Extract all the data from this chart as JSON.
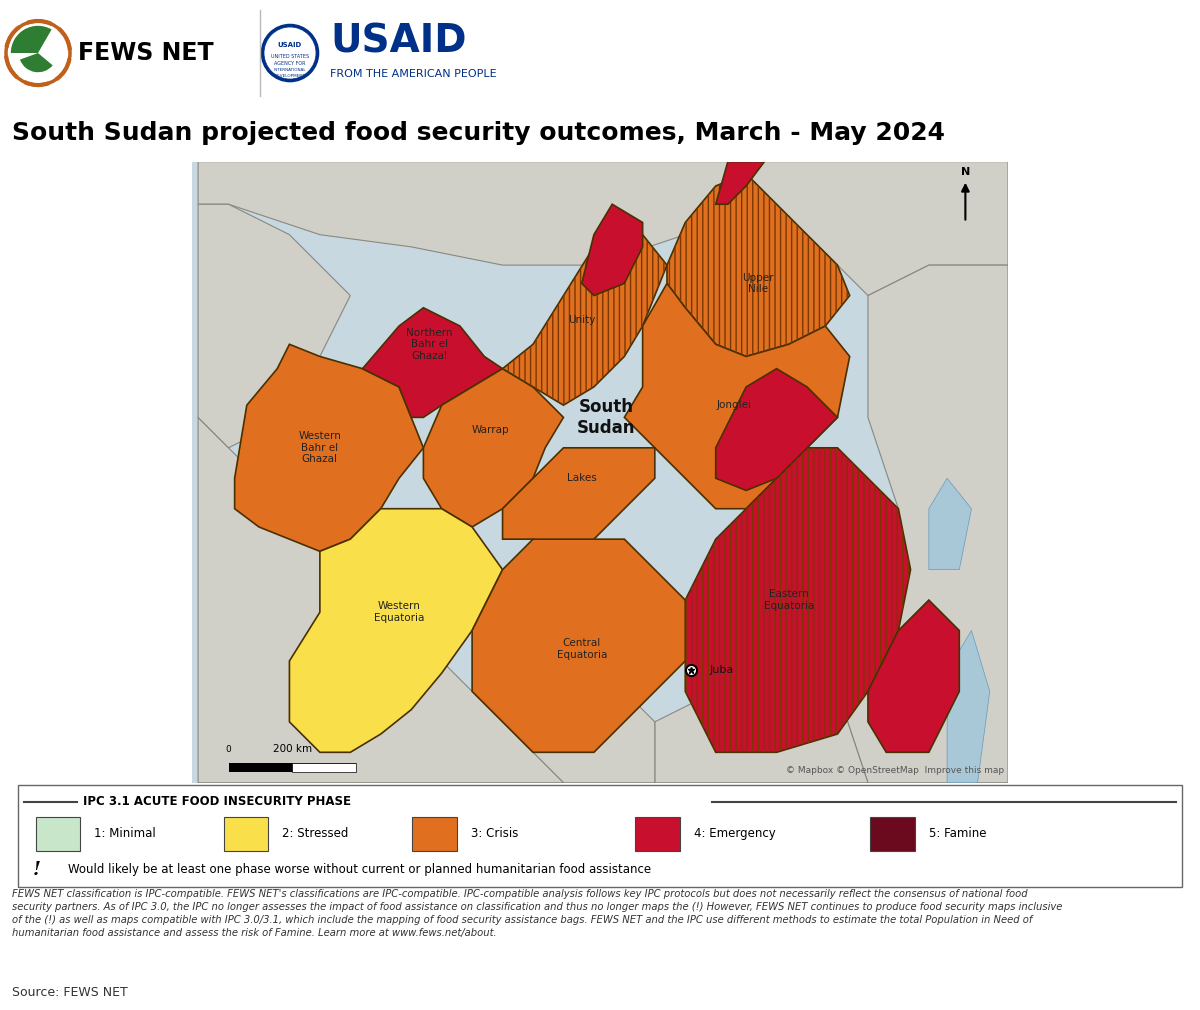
{
  "title": "South Sudan projected food security outcomes, March - May 2024",
  "title_fontsize": 18,
  "fig_width": 12.0,
  "fig_height": 10.1,
  "legend_title": "IPC 3.1 ACUTE FOOD INSECURITY PHASE",
  "legend_items": [
    {
      "label": "1: Minimal",
      "color": "#c8e6c9"
    },
    {
      "label": "2: Stressed",
      "color": "#f9e04b"
    },
    {
      "label": "3: Crisis",
      "color": "#e07020"
    },
    {
      "label": "4: Emergency",
      "color": "#c8102e"
    },
    {
      "label": "5: Famine",
      "color": "#6b0a1e"
    }
  ],
  "legend_note": "Would likely be at least one phase worse without current or planned humanitarian food assistance",
  "footer_text": "FEWS NET classification is IPC-compatible. FEWS NET's classifications are IPC-compatible. IPC-compatible analysis follows key IPC protocols but does not necessarily reflect the consensus of national food\nsecurity partners. As of IPC 3.0, the IPC no longer assesses the impact of food assistance on classification and thus no longer maps the (!) However, FEWS NET continues to produce food security maps inclusive\nof the (!) as well as maps compatible with IPC 3.0/3.1, which include the mapping of food security assistance bags. FEWS NET and the IPC use different methods to estimate the total Population in Need of\nhumanitarian food assistance and assess the risk of Famine. Learn more at www.fews.net/about.",
  "source_text": "Source: FEWS NET",
  "colors": {
    "minimal": "#c8e6c9",
    "stressed": "#f9e04b",
    "crisis": "#e07020",
    "emergency": "#c8102e",
    "famine": "#6b0a1e",
    "border": "#4a3000",
    "neighbor_land": "#d0cfc8",
    "neighbor_border": "#888880",
    "water": "#a8c8d8",
    "map_bg": "#c8d8e0"
  },
  "scale_bar_label": "200 km",
  "copyright_text": "© Mapbox © OpenStreetMap  Improve this map"
}
